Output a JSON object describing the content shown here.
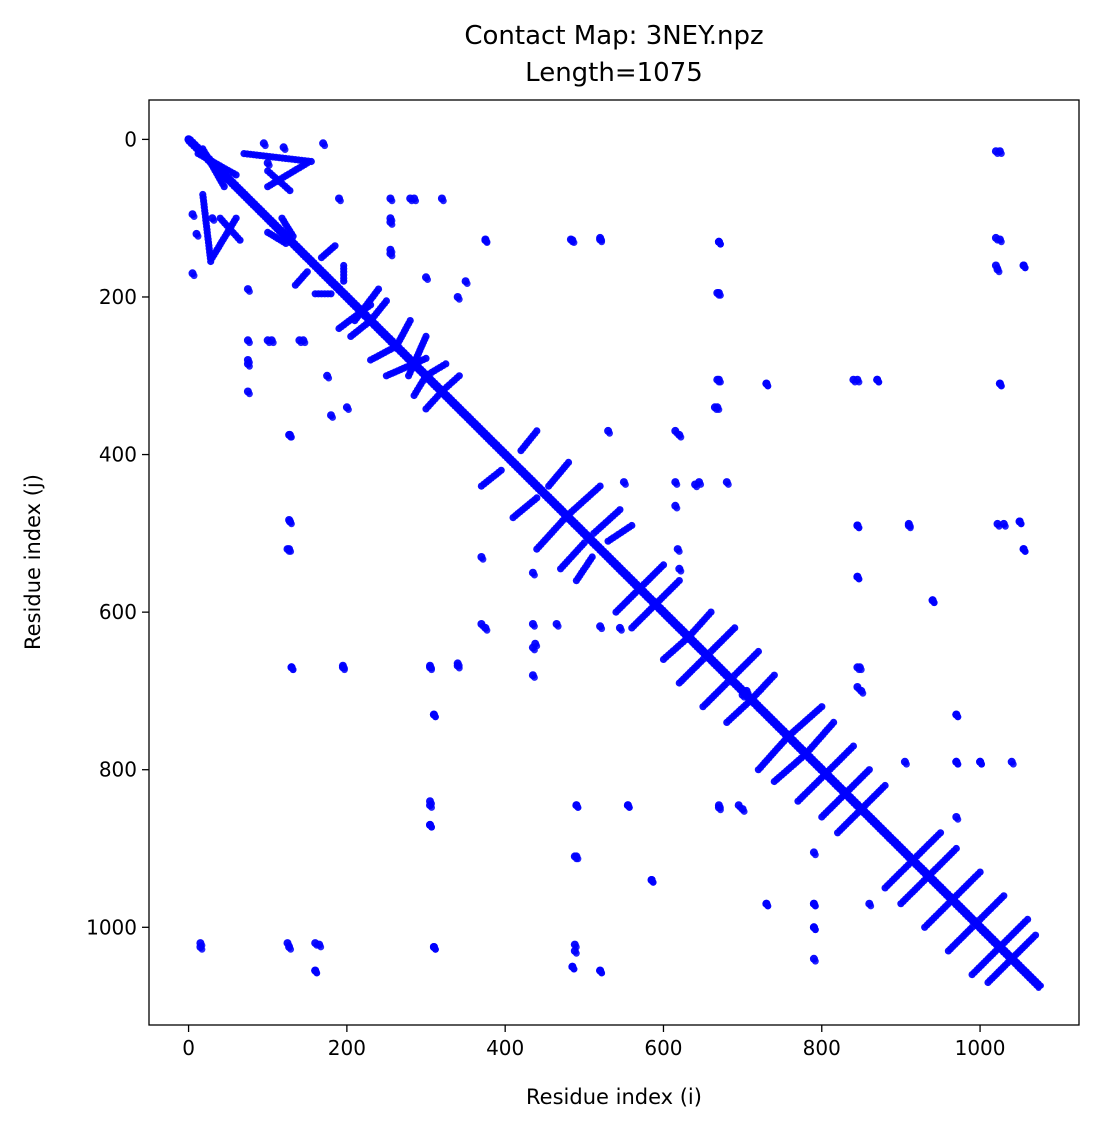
{
  "chart_data": {
    "type": "scatter",
    "title": "Contact Map: 3NEY.npz",
    "subtitle": "Length=1075",
    "xlabel": "Residue index (i)",
    "ylabel": "Residue index (j)",
    "xlim": [
      -50,
      1125
    ],
    "ylim": [
      1124,
      -50
    ],
    "y_inverted": true,
    "grid": false,
    "marker_color": "#0000ff",
    "length": 1075,
    "x_ticks": [
      0,
      200,
      400,
      600,
      800,
      1000
    ],
    "y_ticks": [
      0,
      200,
      400,
      600,
      800,
      1000
    ],
    "diagonal": {
      "from": 0,
      "to": 1074
    },
    "segments": [
      [
        12,
        18,
        60,
        45
      ],
      [
        18,
        12,
        45,
        60
      ],
      [
        18,
        70,
        28,
        155
      ],
      [
        70,
        18,
        155,
        28
      ],
      [
        40,
        100,
        65,
        128
      ],
      [
        100,
        40,
        128,
        65
      ],
      [
        60,
        100,
        30,
        150
      ],
      [
        100,
        60,
        150,
        30
      ],
      [
        100,
        118,
        123,
        132
      ],
      [
        118,
        100,
        132,
        123
      ],
      [
        135,
        185,
        150,
        168
      ],
      [
        185,
        135,
        168,
        150
      ],
      [
        160,
        196,
        180,
        196
      ],
      [
        196,
        160,
        196,
        180
      ],
      [
        190,
        240,
        230,
        210
      ],
      [
        240,
        190,
        210,
        230
      ],
      [
        205,
        250,
        230,
        230
      ],
      [
        250,
        205,
        230,
        230
      ],
      [
        230,
        280,
        258,
        265
      ],
      [
        280,
        230,
        265,
        258
      ],
      [
        250,
        300,
        300,
        278
      ],
      [
        300,
        250,
        278,
        300
      ],
      [
        285,
        325,
        300,
        300
      ],
      [
        325,
        285,
        300,
        300
      ],
      [
        300,
        342,
        320,
        320
      ],
      [
        342,
        300,
        320,
        320
      ],
      [
        370,
        440,
        395,
        420
      ],
      [
        440,
        370,
        420,
        395
      ],
      [
        410,
        480,
        440,
        455
      ],
      [
        480,
        410,
        455,
        440
      ],
      [
        440,
        520,
        478,
        478
      ],
      [
        520,
        440,
        478,
        478
      ],
      [
        470,
        545,
        500,
        512
      ],
      [
        545,
        470,
        512,
        500
      ],
      [
        490,
        560,
        510,
        530
      ],
      [
        560,
        490,
        530,
        510
      ],
      [
        540,
        600,
        570,
        570
      ],
      [
        600,
        540,
        570,
        570
      ],
      [
        560,
        620,
        590,
        590
      ],
      [
        620,
        560,
        590,
        590
      ],
      [
        600,
        660,
        628,
        635
      ],
      [
        660,
        600,
        635,
        628
      ],
      [
        620,
        690,
        650,
        660
      ],
      [
        690,
        620,
        660,
        650
      ],
      [
        650,
        720,
        680,
        690
      ],
      [
        720,
        650,
        690,
        680
      ],
      [
        680,
        740,
        710,
        712
      ],
      [
        740,
        680,
        712,
        710
      ],
      [
        720,
        800,
        760,
        755
      ],
      [
        800,
        720,
        755,
        760
      ],
      [
        740,
        815,
        780,
        780
      ],
      [
        815,
        740,
        780,
        780
      ],
      [
        770,
        840,
        805,
        805
      ],
      [
        840,
        770,
        805,
        805
      ],
      [
        800,
        860,
        830,
        830
      ],
      [
        860,
        800,
        830,
        830
      ],
      [
        820,
        880,
        850,
        850
      ],
      [
        880,
        820,
        850,
        850
      ],
      [
        880,
        950,
        915,
        915
      ],
      [
        950,
        880,
        915,
        915
      ],
      [
        900,
        970,
        935,
        935
      ],
      [
        970,
        900,
        935,
        935
      ],
      [
        930,
        1000,
        965,
        965
      ],
      [
        1000,
        930,
        965,
        965
      ],
      [
        960,
        1030,
        990,
        1000
      ],
      [
        1030,
        960,
        1000,
        990
      ],
      [
        990,
        1060,
        1025,
        1025
      ],
      [
        1060,
        990,
        1025,
        1025
      ],
      [
        1010,
        1070,
        1040,
        1040
      ],
      [
        1070,
        1010,
        1040,
        1040
      ]
    ],
    "points": [
      [
        5,
        95
      ],
      [
        95,
        5
      ],
      [
        5,
        170
      ],
      [
        170,
        5
      ],
      [
        10,
        120
      ],
      [
        120,
        10
      ],
      [
        15,
        1025
      ],
      [
        1025,
        15
      ],
      [
        30,
        100
      ],
      [
        100,
        30
      ],
      [
        75,
        190
      ],
      [
        190,
        75
      ],
      [
        75,
        255
      ],
      [
        255,
        75
      ],
      [
        75,
        280
      ],
      [
        280,
        75
      ],
      [
        75,
        320
      ],
      [
        320,
        75
      ],
      [
        100,
        255
      ],
      [
        255,
        100
      ],
      [
        127,
        375
      ],
      [
        375,
        127
      ],
      [
        127,
        483
      ],
      [
        483,
        127
      ],
      [
        127,
        520
      ],
      [
        520,
        127
      ],
      [
        127,
        1025
      ],
      [
        1025,
        127
      ],
      [
        130,
        670
      ],
      [
        670,
        130
      ],
      [
        145,
        255
      ],
      [
        255,
        145
      ],
      [
        160,
        1055
      ],
      [
        1055,
        160
      ],
      [
        165,
        1022
      ],
      [
        1022,
        165
      ],
      [
        175,
        300
      ],
      [
        300,
        175
      ],
      [
        180,
        350
      ],
      [
        350,
        180
      ],
      [
        195,
        670
      ],
      [
        670,
        195
      ],
      [
        200,
        340
      ],
      [
        340,
        200
      ],
      [
        255,
        105
      ],
      [
        105,
        255
      ],
      [
        255,
        140
      ],
      [
        140,
        255
      ],
      [
        285,
        75
      ],
      [
        75,
        285
      ],
      [
        305,
        670
      ],
      [
        670,
        305
      ],
      [
        310,
        730
      ],
      [
        730,
        310
      ],
      [
        305,
        845
      ],
      [
        845,
        305
      ],
      [
        305,
        870
      ],
      [
        870,
        305
      ],
      [
        310,
        1025
      ],
      [
        1025,
        310
      ],
      [
        340,
        665
      ],
      [
        665,
        340
      ],
      [
        375,
        128
      ],
      [
        128,
        375
      ],
      [
        370,
        530
      ],
      [
        530,
        370
      ],
      [
        375,
        620
      ],
      [
        620,
        375
      ],
      [
        435,
        550
      ],
      [
        550,
        435
      ],
      [
        435,
        645
      ],
      [
        645,
        435
      ],
      [
        435,
        680
      ],
      [
        680,
        435
      ],
      [
        485,
        128
      ],
      [
        128,
        485
      ],
      [
        485,
        1050
      ],
      [
        1050,
        485
      ],
      [
        488,
        910
      ],
      [
        910,
        488
      ],
      [
        490,
        845
      ],
      [
        845,
        490
      ],
      [
        520,
        125
      ],
      [
        125,
        520
      ],
      [
        520,
        1055
      ],
      [
        1055,
        520
      ],
      [
        545,
        620
      ],
      [
        620,
        545
      ],
      [
        555,
        845
      ],
      [
        845,
        555
      ],
      [
        585,
        940
      ],
      [
        940,
        585
      ],
      [
        615,
        370
      ],
      [
        370,
        615
      ],
      [
        615,
        435
      ],
      [
        435,
        615
      ],
      [
        615,
        465
      ],
      [
        465,
        615
      ],
      [
        618,
        520
      ],
      [
        520,
        618
      ],
      [
        640,
        438
      ],
      [
        438,
        640
      ],
      [
        668,
        195
      ],
      [
        195,
        668
      ],
      [
        668,
        305
      ],
      [
        305,
        668
      ],
      [
        668,
        340
      ],
      [
        340,
        668
      ],
      [
        670,
        130
      ],
      [
        130,
        670
      ],
      [
        670,
        845
      ],
      [
        845,
        670
      ],
      [
        695,
        845
      ],
      [
        845,
        695
      ],
      [
        705,
        700
      ],
      [
        700,
        705
      ],
      [
        730,
        970
      ],
      [
        970,
        730
      ],
      [
        730,
        310
      ],
      [
        310,
        730
      ],
      [
        790,
        790
      ],
      [
        790,
        970
      ],
      [
        970,
        790
      ],
      [
        790,
        1000
      ],
      [
        1000,
        790
      ],
      [
        790,
        1040
      ],
      [
        1040,
        790
      ],
      [
        840,
        305
      ],
      [
        305,
        840
      ],
      [
        845,
        490
      ],
      [
        490,
        845
      ],
      [
        845,
        555
      ],
      [
        555,
        845
      ],
      [
        848,
        670
      ],
      [
        670,
        848
      ],
      [
        850,
        700
      ],
      [
        700,
        850
      ],
      [
        870,
        305
      ],
      [
        305,
        870
      ],
      [
        910,
        490
      ],
      [
        490,
        910
      ],
      [
        905,
        790
      ],
      [
        790,
        905
      ],
      [
        940,
        585
      ],
      [
        585,
        940
      ],
      [
        970,
        730
      ],
      [
        730,
        970
      ],
      [
        970,
        790
      ],
      [
        790,
        970
      ],
      [
        970,
        860
      ],
      [
        860,
        970
      ],
      [
        1000,
        790
      ],
      [
        790,
        1000
      ],
      [
        1020,
        15
      ],
      [
        15,
        1020
      ],
      [
        1020,
        125
      ],
      [
        125,
        1020
      ],
      [
        1020,
        160
      ],
      [
        160,
        1020
      ],
      [
        1025,
        310
      ],
      [
        310,
        1025
      ],
      [
        1022,
        488
      ],
      [
        488,
        1022
      ],
      [
        1030,
        488
      ],
      [
        488,
        1030
      ],
      [
        1050,
        485
      ],
      [
        485,
        1050
      ],
      [
        1055,
        160
      ],
      [
        160,
        1055
      ],
      [
        1055,
        520
      ],
      [
        520,
        1055
      ]
    ]
  }
}
